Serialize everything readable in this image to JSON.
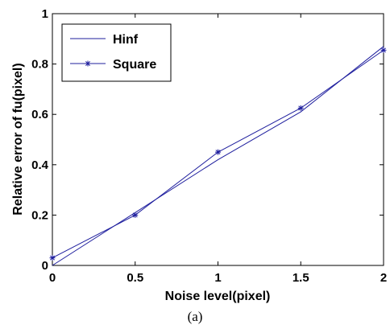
{
  "caption": "(a)",
  "chart_data": {
    "type": "line",
    "xlabel": "Noise level(pixel)",
    "ylabel": "Relative error of fu(pixel)",
    "xlim": [
      0,
      2
    ],
    "ylim": [
      0,
      1
    ],
    "xticks": [
      "0",
      "0.5",
      "1",
      "1.5",
      "2"
    ],
    "yticks": [
      "0",
      "0.2",
      "0.4",
      "0.6",
      "0.8",
      "1"
    ],
    "grid": false,
    "legend_position": "top-left",
    "series": [
      {
        "name": "Hinf",
        "x": [
          0,
          0.5,
          1,
          1.5,
          2
        ],
        "y": [
          0.0,
          0.21,
          0.42,
          0.61,
          0.87
        ],
        "marker": "none",
        "color": "#1f1f9e"
      },
      {
        "name": "Square",
        "x": [
          0,
          0.5,
          1,
          1.5,
          2
        ],
        "y": [
          0.03,
          0.2,
          0.45,
          0.625,
          0.855
        ],
        "marker": "asterisk",
        "color": "#1f1f9e"
      }
    ]
  }
}
